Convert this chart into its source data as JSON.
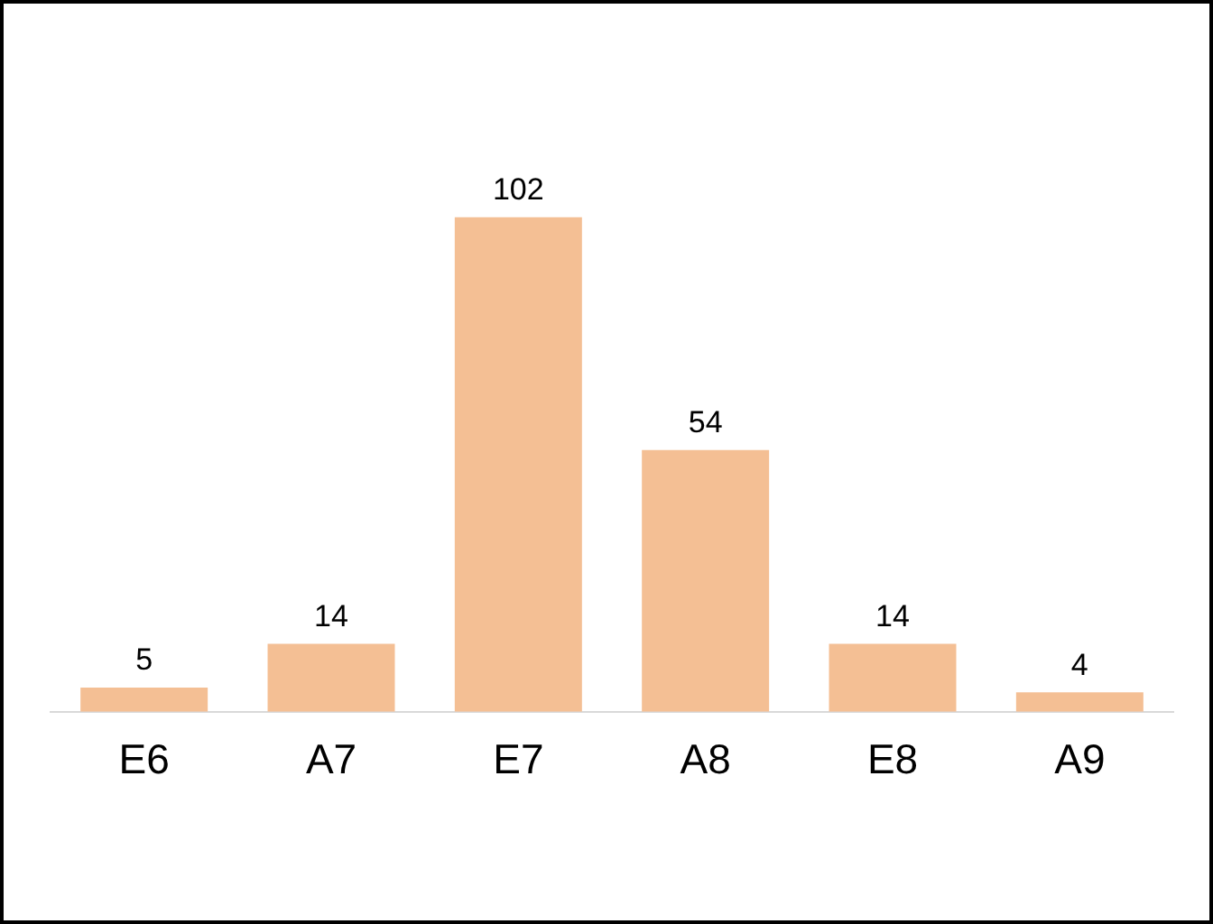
{
  "chart_data": {
    "type": "bar",
    "categories": [
      "E6",
      "A7",
      "E7",
      "A8",
      "E8",
      "A9"
    ],
    "values": [
      5,
      14,
      102,
      54,
      14,
      4
    ],
    "color": "#f4bf94",
    "data_labels": true,
    "grid": false,
    "legend": false
  }
}
